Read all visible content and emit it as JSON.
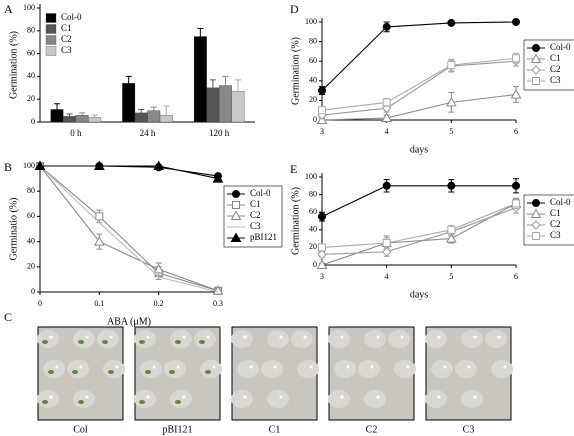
{
  "chart_data": [
    {
      "panel": "A",
      "type": "bar",
      "ylabel": "Germination (%)",
      "categories": [
        "0 h",
        "24 h",
        "120 h"
      ],
      "series": [
        {
          "name": "Col-0",
          "color": "#000000",
          "values": [
            11,
            34,
            75
          ],
          "errors": [
            5,
            6,
            7
          ]
        },
        {
          "name": "C1",
          "color": "#555555",
          "values": [
            5,
            8,
            30
          ],
          "errors": [
            2,
            3,
            7
          ]
        },
        {
          "name": "C2",
          "color": "#888888",
          "values": [
            6,
            10,
            32
          ],
          "errors": [
            2,
            3,
            8
          ]
        },
        {
          "name": "C3",
          "color": "#c8c8c8",
          "values": [
            4,
            6,
            27
          ],
          "errors": [
            2,
            8,
            10
          ]
        }
      ],
      "ylim": [
        0,
        100
      ],
      "yticks": [
        0,
        20,
        40,
        60,
        80,
        100
      ],
      "legend": "upper left"
    },
    {
      "panel": "B",
      "type": "line",
      "ylabel": "Germinatio (%)",
      "xlabel": "ABA (μM)",
      "x": [
        0,
        0.1,
        0.2,
        0.3
      ],
      "xlim": [
        0,
        0.3
      ],
      "xticks": [
        0,
        0.1,
        0.2,
        0.3
      ],
      "series": [
        {
          "name": "Col-0",
          "color": "#000000",
          "marker": "circle-filled",
          "values": [
            100,
            100,
            99,
            92
          ]
        },
        {
          "name": "C1",
          "color": "#888888",
          "marker": "square-open",
          "values": [
            100,
            60,
            15,
            1
          ],
          "errors": [
            2,
            5,
            5,
            2
          ]
        },
        {
          "name": "C2",
          "color": "#888888",
          "marker": "triangle-open",
          "values": [
            100,
            40,
            18,
            1
          ],
          "errors": [
            2,
            6,
            5,
            2
          ]
        },
        {
          "name": "C3",
          "color": "#bbbbbb",
          "marker": "none",
          "values": [
            100,
            55,
            12,
            0
          ]
        },
        {
          "name": "pBI121",
          "color": "#000000",
          "marker": "triangle-filled",
          "values": [
            100,
            100,
            100,
            90
          ]
        }
      ],
      "ylim": [
        0,
        100
      ],
      "yticks": [
        0,
        20,
        40,
        60,
        80,
        100
      ],
      "legend": "center right"
    },
    {
      "panel": "D",
      "type": "line",
      "ylabel": "Germination (%)",
      "xlabel": "days",
      "x": [
        3,
        4,
        5,
        6
      ],
      "xlim": [
        3,
        6
      ],
      "xticks": [
        3,
        4,
        5,
        6
      ],
      "series": [
        {
          "name": "Col-0",
          "color": "#000000",
          "marker": "circle-filled",
          "values": [
            30,
            95,
            99,
            100
          ],
          "errors": [
            4,
            5,
            2,
            2
          ]
        },
        {
          "name": "C1",
          "color": "#888888",
          "marker": "triangle-open",
          "values": [
            0,
            2,
            18,
            26
          ],
          "errors": [
            2,
            3,
            10,
            8
          ]
        },
        {
          "name": "C2",
          "color": "#999999",
          "marker": "diamond-open",
          "values": [
            5,
            12,
            55,
            60
          ],
          "errors": [
            3,
            4,
            6,
            5
          ]
        },
        {
          "name": "C3",
          "color": "#aaaaaa",
          "marker": "square-open",
          "values": [
            10,
            18,
            56,
            63
          ],
          "errors": [
            3,
            4,
            6,
            5
          ]
        }
      ],
      "ylim": [
        0,
        100
      ],
      "yticks": [
        0,
        20,
        40,
        60,
        80,
        100
      ],
      "legend": "outside right"
    },
    {
      "panel": "E",
      "type": "line",
      "ylabel": "Germination (%)",
      "xlabel": "days",
      "x": [
        3,
        4,
        5,
        6
      ],
      "xlim": [
        3,
        6
      ],
      "xticks": [
        3,
        4,
        5,
        6
      ],
      "series": [
        {
          "name": "Col-0",
          "color": "#000000",
          "marker": "circle-filled",
          "values": [
            55,
            90,
            90,
            90
          ],
          "errors": [
            5,
            7,
            7,
            8
          ]
        },
        {
          "name": "C1",
          "color": "#888888",
          "marker": "triangle-open",
          "values": [
            0,
            25,
            30,
            70
          ],
          "errors": [
            2,
            8,
            5,
            5
          ]
        },
        {
          "name": "C2",
          "color": "#999999",
          "marker": "diamond-open",
          "values": [
            12,
            15,
            38,
            65
          ],
          "errors": [
            3,
            5,
            5,
            6
          ]
        },
        {
          "name": "C3",
          "color": "#aaaaaa",
          "marker": "square-open",
          "values": [
            20,
            25,
            40,
            70
          ],
          "errors": [
            3,
            6,
            5,
            6
          ]
        }
      ],
      "ylim": [
        0,
        100
      ],
      "yticks": [
        0,
        20,
        40,
        60,
        80,
        100
      ],
      "legend": "outside right"
    }
  ],
  "photos": {
    "panel": "C",
    "labels": [
      "Col",
      "pBI121",
      "C1",
      "C2",
      "C3"
    ]
  }
}
